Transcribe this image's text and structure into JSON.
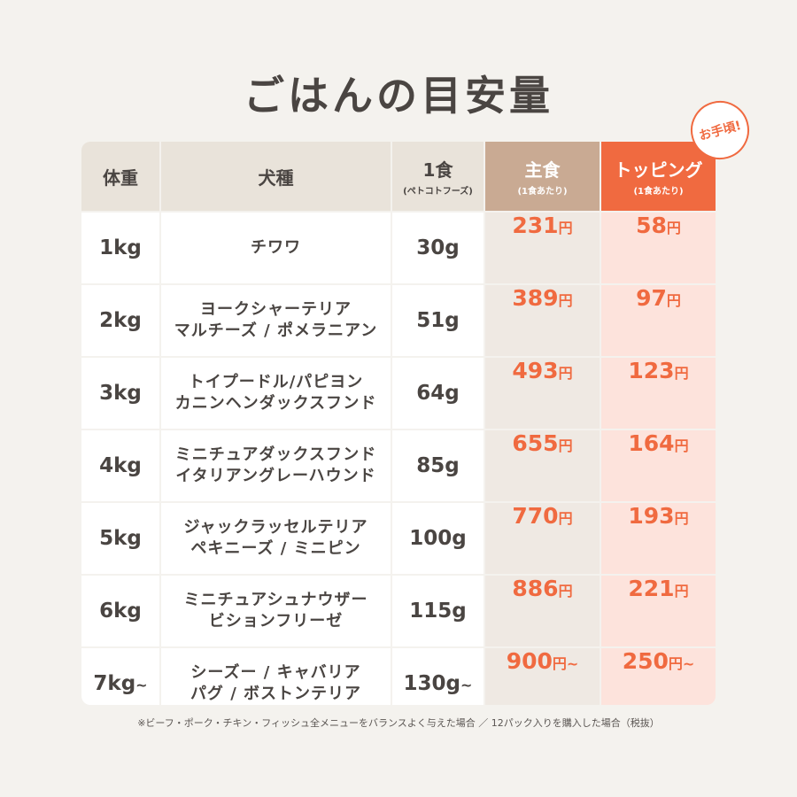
{
  "title": "ごはんの目安量",
  "badge": "お手頃!",
  "table": {
    "header": [
      {
        "label": "体重"
      },
      {
        "label": "犬種"
      },
      {
        "label": "1食",
        "sub": "(ペトコトフーズ)"
      },
      {
        "label": "主食",
        "sub": "(1食あたり)"
      },
      {
        "label": "トッピング",
        "sub": "(1食あたり)"
      }
    ],
    "rows": [
      {
        "weight": "1kg",
        "breeds": [
          "チワワ"
        ],
        "food": "30g",
        "main": {
          "amount": 231,
          "unit": "円"
        },
        "topping": {
          "amount": 58,
          "unit": "円"
        }
      },
      {
        "weight": "2kg",
        "breeds": [
          "ヨークシャーテリア",
          "マルチーズ / ポメラニアン"
        ],
        "food": "51g",
        "main": {
          "amount": 389,
          "unit": "円"
        },
        "topping": {
          "amount": 97,
          "unit": "円"
        }
      },
      {
        "weight": "3kg",
        "breeds": [
          "トイプードル/パピヨン",
          "カニンヘンダックスフンド"
        ],
        "food": "64g",
        "main": {
          "amount": 493,
          "unit": "円"
        },
        "topping": {
          "amount": 123,
          "unit": "円"
        }
      },
      {
        "weight": "4kg",
        "breeds": [
          "ミニチュアダックスフンド",
          "イタリアングレーハウンド"
        ],
        "food": "85g",
        "main": {
          "amount": 655,
          "unit": "円"
        },
        "topping": {
          "amount": 164,
          "unit": "円"
        }
      },
      {
        "weight": "5kg",
        "breeds": [
          "ジャックラッセルテリア",
          "ペキニーズ / ミニピン"
        ],
        "food": "100g",
        "main": {
          "amount": 770,
          "unit": "円"
        },
        "topping": {
          "amount": 193,
          "unit": "円"
        }
      },
      {
        "weight": "6kg",
        "breeds": [
          "ミニチュアシュナウザー",
          "ビションフリーゼ"
        ],
        "food": "115g",
        "main": {
          "amount": 886,
          "unit": "円"
        },
        "topping": {
          "amount": 221,
          "unit": "円"
        }
      },
      {
        "weight": "7kg",
        "weight_suffix": "~",
        "breeds": [
          "シーズー / キャバリア",
          "パグ / ボストンテリア"
        ],
        "food": "130g",
        "food_suffix": "~",
        "main": {
          "amount": 900,
          "unit": "円",
          "suffix": "~"
        },
        "topping": {
          "amount": 250,
          "unit": "円",
          "suffix": "~"
        }
      }
    ]
  },
  "note": "※ビーフ・ポーク・チキン・フィッシュ全メニューをバランスよく与えた場合 ／ 12パック入りを購入した場合（税抜）"
}
